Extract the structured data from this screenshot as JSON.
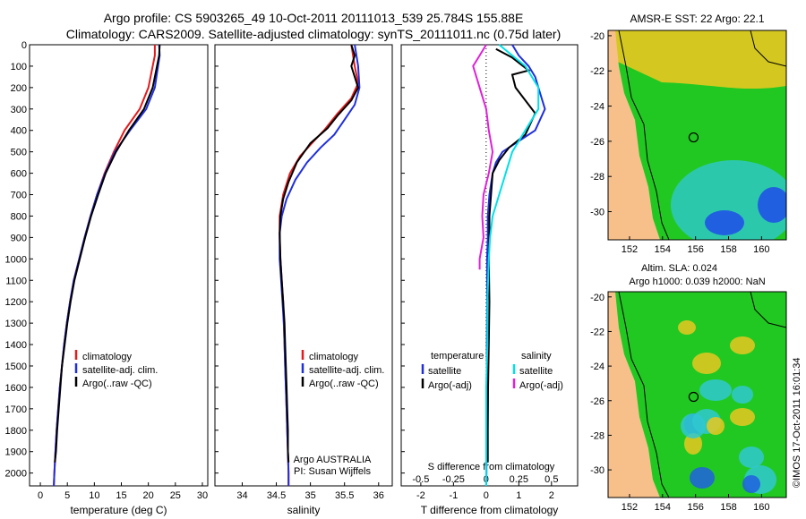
{
  "header": {
    "title_line1": "Argo profile: CS 5903265_49 10-Oct-2011 20111013_539 25.784S 155.88E",
    "title_line2": "Climatology: CARS2009. Satellite-adjusted climatology: synTS_20111011.nc (0.75d later)"
  },
  "credit": "©IMOS 17-Oct-2011 16:01:34",
  "chart_data": [
    {
      "type": "line",
      "id": "temperature",
      "xlabel": "temperature (deg C)",
      "ylabel": "",
      "xlim": [
        -2,
        31
      ],
      "ylim": [
        2060,
        0
      ],
      "xticks": [
        0,
        5,
        10,
        15,
        20,
        25,
        30
      ],
      "yticks": [
        0,
        100,
        200,
        300,
        400,
        500,
        600,
        700,
        800,
        900,
        1000,
        1100,
        1200,
        1300,
        1400,
        1500,
        1600,
        1700,
        1800,
        1900,
        2000
      ],
      "legend": [
        "climatology",
        "satellite-adj. clim.",
        "Argo(..raw -QC)"
      ],
      "legend_colors": [
        "#e41a1c",
        "#1f2fdc",
        "#000000"
      ],
      "series": [
        {
          "name": "climatology",
          "color": "#e41a1c",
          "points": [
            [
              21.2,
              0
            ],
            [
              21.2,
              50
            ],
            [
              20.8,
              100
            ],
            [
              20.0,
              200
            ],
            [
              18.4,
              300
            ],
            [
              15.6,
              400
            ],
            [
              13.6,
              500
            ],
            [
              11.9,
              600
            ],
            [
              10.5,
              700
            ],
            [
              9.3,
              800
            ],
            [
              8.2,
              900
            ],
            [
              7.2,
              1000
            ],
            [
              6.2,
              1100
            ],
            [
              5.5,
              1200
            ],
            [
              4.9,
              1300
            ],
            [
              4.4,
              1400
            ],
            [
              4.0,
              1500
            ],
            [
              3.6,
              1600
            ],
            [
              3.3,
              1700
            ],
            [
              3.0,
              1800
            ],
            [
              2.8,
              1900
            ],
            [
              2.6,
              2000
            ],
            [
              2.5,
              2060
            ]
          ]
        },
        {
          "name": "satellite-adj. clim.",
          "color": "#1f2fdc",
          "points": [
            [
              22.0,
              0
            ],
            [
              22.1,
              50
            ],
            [
              21.8,
              100
            ],
            [
              21.2,
              200
            ],
            [
              19.6,
              300
            ],
            [
              16.6,
              400
            ],
            [
              13.8,
              500
            ],
            [
              12.0,
              600
            ],
            [
              10.5,
              700
            ],
            [
              9.3,
              800
            ],
            [
              8.2,
              900
            ],
            [
              7.2,
              1000
            ],
            [
              6.2,
              1100
            ],
            [
              5.5,
              1200
            ],
            [
              4.9,
              1300
            ],
            [
              4.4,
              1400
            ],
            [
              4.0,
              1500
            ],
            [
              3.6,
              1600
            ],
            [
              3.3,
              1700
            ],
            [
              3.0,
              1800
            ],
            [
              2.8,
              1900
            ],
            [
              2.6,
              2000
            ],
            [
              2.5,
              2060
            ]
          ]
        },
        {
          "name": "Argo(..raw -QC)",
          "color": "#000000",
          "points": [
            [
              22.1,
              0
            ],
            [
              22.0,
              50
            ],
            [
              21.6,
              100
            ],
            [
              20.8,
              200
            ],
            [
              19.2,
              300
            ],
            [
              16.4,
              400
            ],
            [
              14.0,
              500
            ],
            [
              12.1,
              600
            ],
            [
              10.7,
              700
            ],
            [
              9.4,
              800
            ],
            [
              8.3,
              900
            ],
            [
              7.3,
              1000
            ],
            [
              6.3,
              1100
            ],
            [
              5.6,
              1200
            ],
            [
              5.0,
              1300
            ],
            [
              4.5,
              1400
            ],
            [
              4.0,
              1500
            ],
            [
              3.7,
              1600
            ],
            [
              3.4,
              1700
            ],
            [
              3.1,
              1800
            ],
            [
              2.9,
              1900
            ],
            [
              2.7,
              1950
            ]
          ]
        }
      ]
    },
    {
      "type": "line",
      "id": "salinity",
      "xlabel": "salinity",
      "ylabel": "",
      "xlim": [
        33.6,
        36.2
      ],
      "ylim": [
        2060,
        0
      ],
      "xticks": [
        34,
        34.5,
        35,
        35.5,
        36
      ],
      "legend": [
        "climatology",
        "satellite-adj. clim.",
        "Argo(..raw -QC)"
      ],
      "legend_colors": [
        "#e41a1c",
        "#1f2fdc",
        "#000000"
      ],
      "annotation": [
        "Argo AUSTRALIA",
        "PI: Susan Wijffels"
      ],
      "series": [
        {
          "name": "climatology",
          "color": "#e41a1c",
          "points": [
            [
              35.6,
              0
            ],
            [
              35.65,
              100
            ],
            [
              35.7,
              180
            ],
            [
              35.6,
              250
            ],
            [
              35.4,
              320
            ],
            [
              35.2,
              400
            ],
            [
              35.05,
              450
            ],
            [
              34.85,
              520
            ],
            [
              34.7,
              600
            ],
            [
              34.6,
              700
            ],
            [
              34.55,
              800
            ],
            [
              34.55,
              900
            ],
            [
              34.56,
              1000
            ],
            [
              34.58,
              1100
            ],
            [
              34.6,
              1200
            ],
            [
              34.61,
              1300
            ],
            [
              34.62,
              1400
            ],
            [
              34.63,
              1500
            ],
            [
              34.64,
              1600
            ],
            [
              34.65,
              1700
            ],
            [
              34.66,
              1800
            ],
            [
              34.67,
              1900
            ],
            [
              34.68,
              2000
            ],
            [
              34.68,
              2060
            ]
          ]
        },
        {
          "name": "satellite-adj. clim.",
          "color": "#1f2fdc",
          "points": [
            [
              35.65,
              0
            ],
            [
              35.7,
              100
            ],
            [
              35.72,
              200
            ],
            [
              35.65,
              280
            ],
            [
              35.5,
              350
            ],
            [
              35.35,
              420
            ],
            [
              35.15,
              480
            ],
            [
              34.95,
              550
            ],
            [
              34.78,
              630
            ],
            [
              34.65,
              720
            ],
            [
              34.58,
              800
            ],
            [
              34.55,
              880
            ],
            [
              34.55,
              1000
            ],
            [
              34.57,
              1100
            ],
            [
              34.59,
              1200
            ],
            [
              34.61,
              1300
            ],
            [
              34.62,
              1400
            ],
            [
              34.63,
              1500
            ],
            [
              34.64,
              1600
            ],
            [
              34.65,
              1700
            ],
            [
              34.66,
              1800
            ],
            [
              34.67,
              1900
            ],
            [
              34.68,
              2000
            ],
            [
              34.68,
              2060
            ]
          ]
        },
        {
          "name": "Argo(..raw -QC)",
          "color": "#000000",
          "points": [
            [
              35.6,
              0
            ],
            [
              35.65,
              50
            ],
            [
              35.6,
              100
            ],
            [
              35.7,
              200
            ],
            [
              35.6,
              260
            ],
            [
              35.4,
              330
            ],
            [
              35.25,
              390
            ],
            [
              35.0,
              460
            ],
            [
              34.8,
              550
            ],
            [
              34.68,
              640
            ],
            [
              34.6,
              720
            ],
            [
              34.56,
              800
            ],
            [
              34.55,
              880
            ],
            [
              34.56,
              1000
            ],
            [
              34.58,
              1100
            ],
            [
              34.6,
              1200
            ],
            [
              34.62,
              1300
            ],
            [
              34.63,
              1400
            ],
            [
              34.64,
              1500
            ],
            [
              34.65,
              1600
            ],
            [
              34.66,
              1700
            ],
            [
              34.67,
              1800
            ],
            [
              34.67,
              1900
            ],
            [
              34.68,
              1950
            ]
          ]
        }
      ]
    },
    {
      "type": "line",
      "id": "difference",
      "xlabel": "T difference from climatology",
      "xlabel_top": "S difference from climatology",
      "xlim": [
        -2.6,
        2.8
      ],
      "ylim": [
        2060,
        0
      ],
      "xticks": [
        -2,
        -1,
        0,
        1,
        2
      ],
      "sticks": [
        [
          -0.5,
          "-0.5"
        ],
        [
          -0.25,
          "-0.25"
        ],
        [
          0,
          "0"
        ],
        [
          0.25,
          "0.25"
        ],
        [
          0.5,
          "0.5"
        ]
      ],
      "s_scale": 4,
      "legend_headers": [
        "temperature",
        "salinity"
      ],
      "legend": [
        "satellite",
        "Argo(-adj)",
        "satellite",
        "Argo(-adj)"
      ],
      "legend_colors": [
        "#1f2fdc",
        "#000000",
        "#00e0e8",
        "#e020d8"
      ],
      "series": [
        {
          "name": "T satellite",
          "color": "#1f2fdc",
          "points": [
            [
              0.8,
              0
            ],
            [
              1.0,
              50
            ],
            [
              1.3,
              100
            ],
            [
              1.5,
              150
            ],
            [
              1.6,
              200
            ],
            [
              1.8,
              300
            ],
            [
              1.5,
              400
            ],
            [
              1.0,
              450
            ],
            [
              0.5,
              500
            ],
            [
              0.3,
              550
            ],
            [
              0.2,
              600
            ],
            [
              0.1,
              700
            ],
            [
              0.05,
              800
            ],
            [
              0.05,
              900
            ],
            [
              0.03,
              1000
            ],
            [
              0.03,
              1200
            ],
            [
              0.02,
              1400
            ],
            [
              0.02,
              1600
            ],
            [
              0.01,
              1800
            ],
            [
              0.01,
              2000
            ],
            [
              0.0,
              2060
            ]
          ]
        },
        {
          "name": "T Argo(-adj)",
          "color": "#000000",
          "points": [
            [
              0.3,
              20
            ],
            [
              0.8,
              60
            ],
            [
              1.3,
              120
            ],
            [
              0.8,
              140
            ],
            [
              0.9,
              200
            ],
            [
              1.3,
              280
            ],
            [
              1.5,
              320
            ],
            [
              1.2,
              420
            ],
            [
              0.7,
              480
            ],
            [
              0.4,
              540
            ],
            [
              0.2,
              600
            ],
            [
              0.15,
              700
            ],
            [
              0.1,
              800
            ],
            [
              0.1,
              900
            ],
            [
              0.08,
              1000
            ],
            [
              0.1,
              1200
            ],
            [
              0.08,
              1400
            ],
            [
              0.06,
              1600
            ],
            [
              0.05,
              1800
            ],
            [
              0.05,
              1950
            ]
          ]
        },
        {
          "name": "S satellite",
          "color": "#00e0e8",
          "points": [
            [
              0.1,
              0
            ],
            [
              0.2,
              50
            ],
            [
              0.3,
              100
            ],
            [
              0.4,
              200
            ],
            [
              0.4,
              300
            ],
            [
              0.3,
              400
            ],
            [
              0.2,
              500
            ],
            [
              0.15,
              600
            ],
            [
              0.1,
              700
            ],
            [
              0.05,
              800
            ],
            [
              0.03,
              900
            ],
            [
              0.02,
              1000
            ],
            [
              0.01,
              1200
            ],
            [
              0.01,
              1400
            ],
            [
              0.0,
              1600
            ],
            [
              0.0,
              1800
            ],
            [
              0.0,
              2000
            ],
            [
              0.0,
              2060
            ]
          ]
        },
        {
          "name": "S Argo(-adj)",
          "color": "#e020d8",
          "points": [
            [
              0.0,
              0
            ],
            [
              -0.05,
              50
            ],
            [
              -0.1,
              100
            ],
            [
              -0.05,
              200
            ],
            [
              0.0,
              300
            ],
            [
              0.02,
              400
            ],
            [
              0.05,
              500
            ],
            [
              0.02,
              600
            ],
            [
              -0.02,
              700
            ],
            [
              -0.03,
              800
            ],
            [
              -0.02,
              900
            ],
            [
              -0.05,
              1000
            ],
            [
              -0.05,
              1050
            ]
          ]
        }
      ]
    }
  ],
  "maps": [
    {
      "title": "AMSR-E SST: 22 Argo: 22.1",
      "title2": "",
      "lon_ticks": [
        "152",
        "154",
        "156",
        "158",
        "160"
      ],
      "lat_ticks": [
        "-20",
        "-22",
        "-24",
        "-26",
        "-28",
        "-30"
      ],
      "marker": {
        "lon": 155.88,
        "lat": -25.78
      }
    },
    {
      "title": "Altim. SLA: 0.024",
      "title2": "Argo h1000: 0.039 h2000: NaN",
      "lon_ticks": [
        "152",
        "154",
        "156",
        "158",
        "160"
      ],
      "lat_ticks": [
        "-20",
        "-22",
        "-24",
        "-26",
        "-28",
        "-30"
      ],
      "marker": {
        "lon": 155.88,
        "lat": -25.78
      }
    }
  ],
  "colors": {
    "land": "#f7c08a",
    "green": "#22c822",
    "yellow": "#e8c820",
    "blue": "#2060e0",
    "cyan": "#30c8d0"
  }
}
